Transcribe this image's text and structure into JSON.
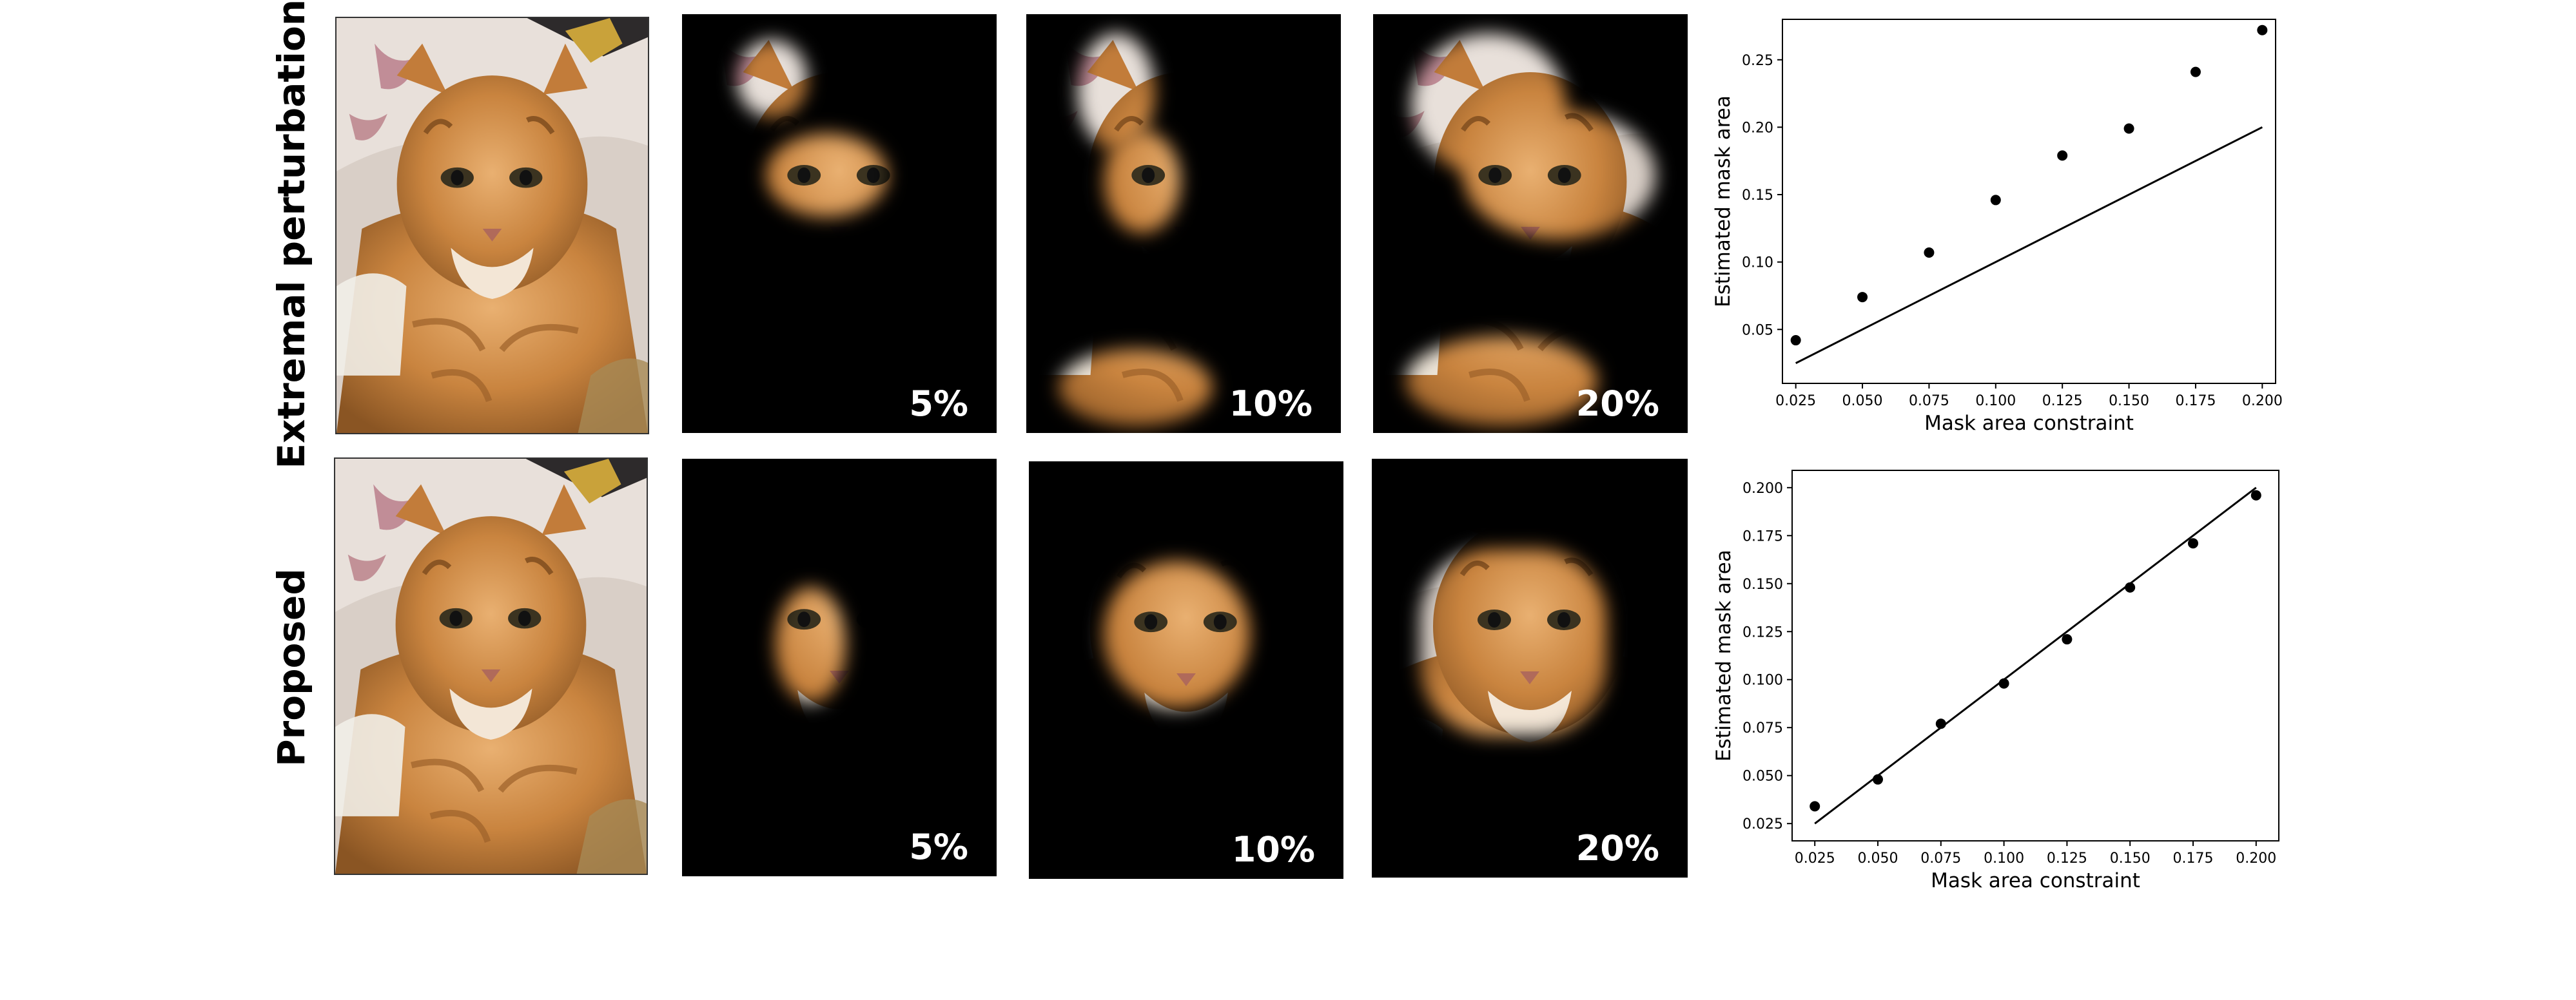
{
  "rows": [
    {
      "label": "Extremal perturbations",
      "masks": [
        "5%",
        "10%",
        "20%"
      ],
      "chart_data": {
        "type": "scatter",
        "xlabel": "Mask area constraint",
        "ylabel": "Estimated mask area",
        "xlim": [
          0.02,
          0.205
        ],
        "ylim": [
          0.01,
          0.28
        ],
        "xticks": [
          "0.025",
          "0.050",
          "0.075",
          "0.100",
          "0.125",
          "0.150",
          "0.175",
          "0.200"
        ],
        "yticks": [
          "0.05",
          "0.10",
          "0.15",
          "0.20",
          "0.25"
        ],
        "points": {
          "x": [
            0.025,
            0.05,
            0.075,
            0.1,
            0.125,
            0.15,
            0.175,
            0.2
          ],
          "y": [
            0.042,
            0.074,
            0.107,
            0.146,
            0.179,
            0.199,
            0.241,
            0.272
          ]
        },
        "reference_line": {
          "x": [
            0.025,
            0.2
          ],
          "y": [
            0.025,
            0.2
          ]
        },
        "grid": false
      }
    },
    {
      "label": "Proposed",
      "masks": [
        "5%",
        "10%",
        "20%"
      ],
      "chart_data": {
        "type": "scatter",
        "xlabel": "Mask area constraint",
        "ylabel": "Estimated mask area",
        "xlim": [
          0.016,
          0.209
        ],
        "ylim": [
          0.016,
          0.209
        ],
        "xticks": [
          "0.025",
          "0.050",
          "0.075",
          "0.100",
          "0.125",
          "0.150",
          "0.175",
          "0.200"
        ],
        "yticks": [
          "0.025",
          "0.050",
          "0.075",
          "0.100",
          "0.125",
          "0.150",
          "0.175",
          "0.200"
        ],
        "points": {
          "x": [
            0.025,
            0.05,
            0.075,
            0.1,
            0.125,
            0.15,
            0.175,
            0.2
          ],
          "y": [
            0.034,
            0.048,
            0.077,
            0.098,
            0.121,
            0.148,
            0.171,
            0.196
          ]
        },
        "reference_line": {
          "x": [
            0.025,
            0.2
          ],
          "y": [
            0.025,
            0.2
          ]
        },
        "grid": false
      }
    }
  ]
}
